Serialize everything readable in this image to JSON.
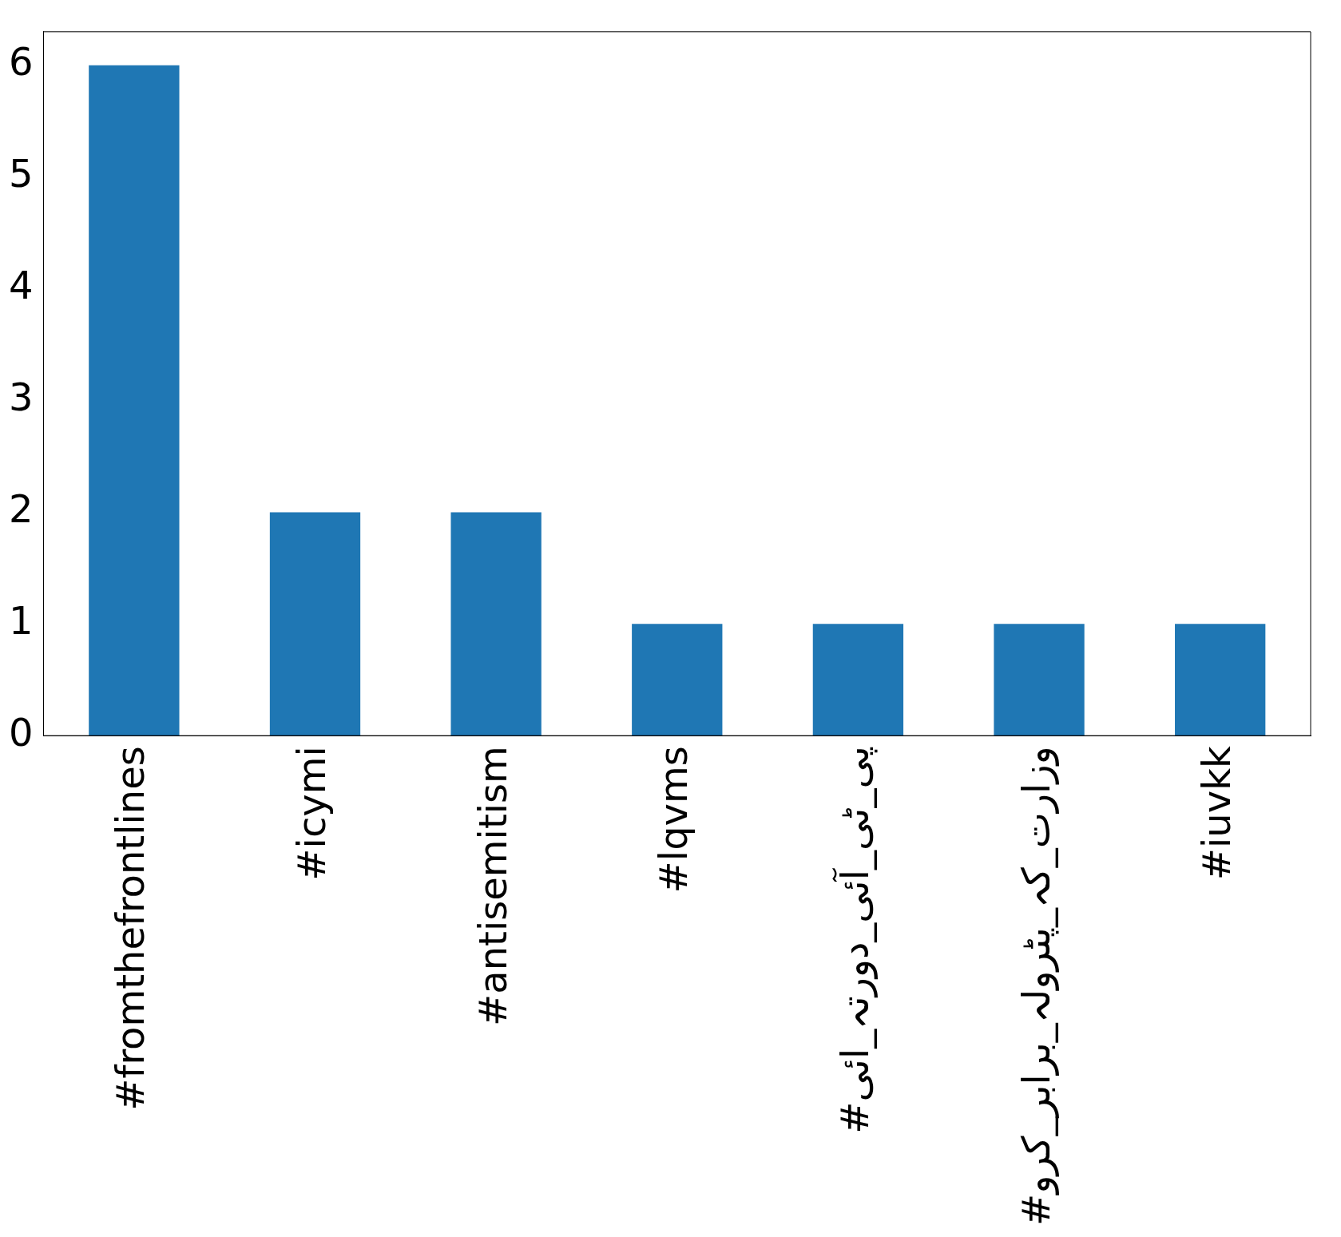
{
  "chart_data": {
    "type": "bar",
    "categories": [
      "#fromthefrontlines",
      "#icymi",
      "#antisemitism",
      "#lqvms",
      "#پی_ٹی_آئی_دورتہ_ائی",
      "#وزارت_کہ_پٹرولہ_برابر_کرو",
      "#iuvkk"
    ],
    "values": [
      6,
      2,
      2,
      1,
      1,
      1,
      1
    ],
    "color": "#1f77b4",
    "ylim": [
      0,
      6.3
    ],
    "yticks": [
      0,
      1,
      2,
      3,
      4,
      5,
      6
    ],
    "grid": false,
    "legend": false
  }
}
